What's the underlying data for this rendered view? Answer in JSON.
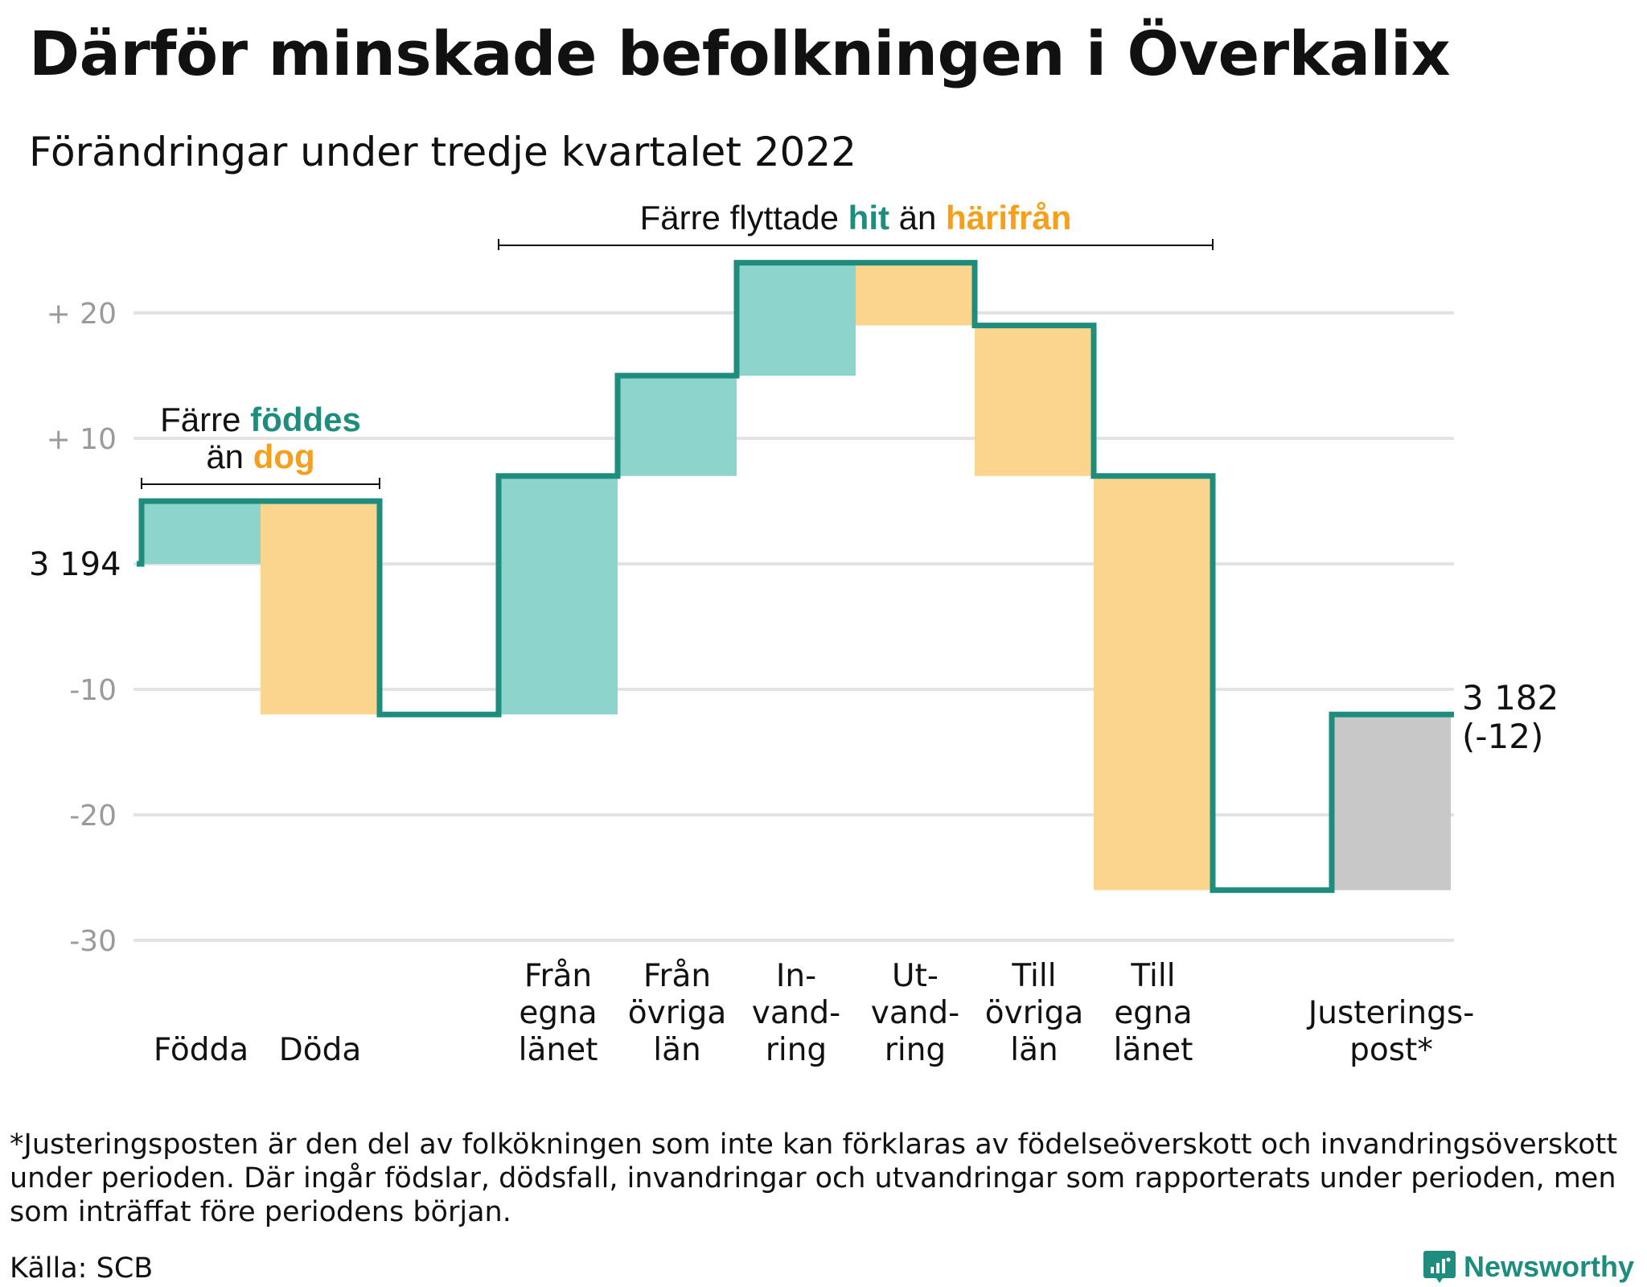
{
  "title": "Därför minskade befolkningen i Överkalix",
  "subtitle": "Förändringar under tredje kvartalet 2022",
  "footnote": "*Justeringsposten är den del av folkökningen som inte kan förklaras av födelseöverskott och invandringsöverskott under perioden. Där ingår födslar, dödsfall, invandringar och utvandringar som rapporterats under perioden, men som inträffat före periodens början.",
  "source": "Källa: SCB",
  "brand": "Newsworthy",
  "colors": {
    "line": "#1e8d7e",
    "increase": "#8dd5cc",
    "decrease": "#fbd58e",
    "adjustment": "#c8c8c8",
    "highlight_teal": "#1e8d7e",
    "highlight_orange": "#f5a01d",
    "grid": "#e3e3e3",
    "tick_text": "#9a9a9a"
  },
  "chart_data": {
    "type": "waterfall",
    "y_range": [
      -30,
      24
    ],
    "y_ticks": [
      {
        "value": 20,
        "label": "+ 20"
      },
      {
        "value": 10,
        "label": "+ 10"
      },
      {
        "value": -10,
        "label": "-10"
      },
      {
        "value": -20,
        "label": "-20"
      },
      {
        "value": -30,
        "label": "-30"
      }
    ],
    "start": {
      "value": 0,
      "label": "3 194"
    },
    "end": {
      "value": -12,
      "label_lines": [
        "3 182",
        "(-12)"
      ]
    },
    "steps": [
      {
        "slot": 0,
        "label_lines": [
          "Födda"
        ],
        "change": 5,
        "kind": "increase"
      },
      {
        "slot": 1,
        "label_lines": [
          "Döda"
        ],
        "change": -17,
        "kind": "decrease"
      },
      {
        "slot": 3,
        "label_lines": [
          "Från",
          "egna",
          "länet"
        ],
        "change": 19,
        "kind": "increase"
      },
      {
        "slot": 4,
        "label_lines": [
          "Från",
          "övriga",
          "län"
        ],
        "change": 8,
        "kind": "increase"
      },
      {
        "slot": 5,
        "label_lines": [
          "In-",
          "vand-",
          "ring"
        ],
        "change": 9,
        "kind": "increase"
      },
      {
        "slot": 6,
        "label_lines": [
          "Ut-",
          "vand-",
          "ring"
        ],
        "change": -5,
        "kind": "decrease"
      },
      {
        "slot": 7,
        "label_lines": [
          "Till",
          "övriga",
          "län"
        ],
        "change": -12,
        "kind": "decrease"
      },
      {
        "slot": 8,
        "label_lines": [
          "Till",
          "egna",
          "länet"
        ],
        "change": -33,
        "kind": "decrease"
      },
      {
        "slot": 10,
        "label_lines": [
          "Justerings-",
          "post*"
        ],
        "change": 14,
        "kind": "adjustment"
      }
    ],
    "annotations": [
      {
        "from_slot": 0,
        "to_slot": 1,
        "lines": [
          [
            {
              "text": "Färre ",
              "color": "default"
            },
            {
              "text": "föddes",
              "color": "teal"
            }
          ],
          [
            {
              "text": "än ",
              "color": "default"
            },
            {
              "text": "dog",
              "color": "orange"
            }
          ]
        ]
      },
      {
        "from_slot": 3,
        "to_slot": 8,
        "lines": [
          [
            {
              "text": "Färre flyttade ",
              "color": "default"
            },
            {
              "text": "hit",
              "color": "teal"
            },
            {
              "text": " än ",
              "color": "default"
            },
            {
              "text": "härifrån",
              "color": "orange"
            }
          ]
        ]
      }
    ]
  }
}
